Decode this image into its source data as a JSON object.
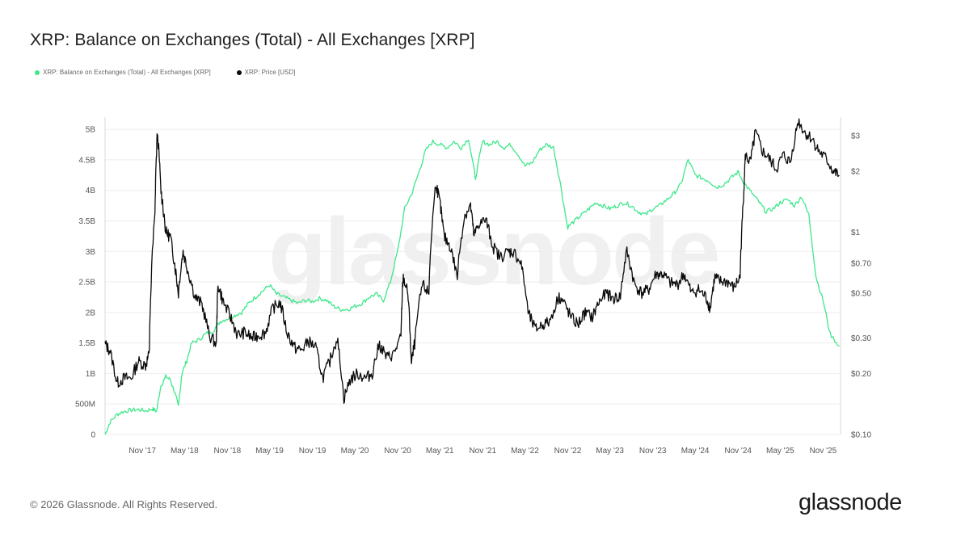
{
  "title": "XRP: Balance on Exchanges (Total) - All Exchanges [XRP]",
  "footer": "© 2026 Glassnode. All Rights Reserved.",
  "brand": "glassnode",
  "watermark": "glassnode",
  "chart_data": {
    "type": "line",
    "title": "XRP: Balance on Exchanges (Total) - All Exchanges [XRP]",
    "legend_position": "top-left",
    "grid": {
      "horizontal": true,
      "vertical": false
    },
    "x_ticks": [
      "Nov '17",
      "May '18",
      "Nov '18",
      "May '19",
      "Nov '19",
      "May '20",
      "Nov '20",
      "May '21",
      "Nov '21",
      "May '22",
      "Nov '22",
      "May '23",
      "Nov '23",
      "May '24",
      "Nov '24",
      "May '25",
      "Nov '25"
    ],
    "x_range": [
      "2017-05-25",
      "2026-01-15"
    ],
    "left_axis": {
      "scale": "linear",
      "range": [
        0,
        5200000000
      ],
      "ticks": [
        0,
        500000000,
        1000000000,
        1500000000,
        2000000000,
        2500000000,
        3000000000,
        3500000000,
        4000000000,
        4500000000,
        5000000000
      ],
      "tick_labels": [
        "0",
        "500M",
        "1B",
        "1.5B",
        "2B",
        "2.5B",
        "3B",
        "3.5B",
        "4B",
        "4.5B",
        "5B"
      ]
    },
    "right_axis": {
      "scale": "log",
      "range": [
        0.1,
        3.7
      ],
      "ticks": [
        0.1,
        0.2,
        0.3,
        0.5,
        0.7,
        1,
        2,
        3
      ],
      "tick_labels": [
        "$0.10",
        "$0.20",
        "$0.30",
        "$0.50",
        "$0.70",
        "$1",
        "$2",
        "$3"
      ]
    },
    "series": [
      {
        "name": "XRP: Balance on Exchanges (Total) - All Exchanges [XRP]",
        "axis": "left",
        "color": "#3ee88a",
        "points": [
          [
            "2017-05-25",
            0
          ],
          [
            "2017-06-15",
            200000000
          ],
          [
            "2017-07-15",
            330000000
          ],
          [
            "2017-08-15",
            380000000
          ],
          [
            "2017-09-15",
            400000000
          ],
          [
            "2017-10-15",
            410000000
          ],
          [
            "2017-11-15",
            390000000
          ],
          [
            "2017-12-15",
            420000000
          ],
          [
            "2018-01-01",
            380000000
          ],
          [
            "2018-01-20",
            800000000
          ],
          [
            "2018-02-10",
            950000000
          ],
          [
            "2018-03-01",
            900000000
          ],
          [
            "2018-03-20",
            700000000
          ],
          [
            "2018-04-05",
            460000000
          ],
          [
            "2018-04-20",
            1000000000
          ],
          [
            "2018-05-10",
            1200000000
          ],
          [
            "2018-06-01",
            1500000000
          ],
          [
            "2018-07-01",
            1550000000
          ],
          [
            "2018-08-01",
            1650000000
          ],
          [
            "2018-09-01",
            1700000000
          ],
          [
            "2018-10-01",
            1850000000
          ],
          [
            "2018-11-01",
            1900000000
          ],
          [
            "2018-12-01",
            1950000000
          ],
          [
            "2019-01-01",
            2000000000
          ],
          [
            "2019-02-01",
            2150000000
          ],
          [
            "2019-03-01",
            2250000000
          ],
          [
            "2019-04-01",
            2350000000
          ],
          [
            "2019-05-01",
            2450000000
          ],
          [
            "2019-06-01",
            2300000000
          ],
          [
            "2019-07-01",
            2250000000
          ],
          [
            "2019-08-01",
            2200000000
          ],
          [
            "2019-09-01",
            2150000000
          ],
          [
            "2019-10-01",
            2200000000
          ],
          [
            "2019-11-01",
            2180000000
          ],
          [
            "2019-12-01",
            2230000000
          ],
          [
            "2020-01-01",
            2200000000
          ],
          [
            "2020-02-01",
            2100000000
          ],
          [
            "2020-03-01",
            2050000000
          ],
          [
            "2020-04-01",
            2050000000
          ],
          [
            "2020-05-01",
            2100000000
          ],
          [
            "2020-06-01",
            2150000000
          ],
          [
            "2020-07-01",
            2250000000
          ],
          [
            "2020-08-01",
            2300000000
          ],
          [
            "2020-09-01",
            2200000000
          ],
          [
            "2020-10-01",
            2500000000
          ],
          [
            "2020-11-01",
            3000000000
          ],
          [
            "2020-12-01",
            3700000000
          ],
          [
            "2021-01-01",
            3950000000
          ],
          [
            "2021-02-01",
            4300000000
          ],
          [
            "2021-03-01",
            4650000000
          ],
          [
            "2021-04-01",
            4800000000
          ],
          [
            "2021-05-01",
            4750000000
          ],
          [
            "2021-06-01",
            4700000000
          ],
          [
            "2021-07-01",
            4800000000
          ],
          [
            "2021-08-01",
            4700000000
          ],
          [
            "2021-09-01",
            4850000000
          ],
          [
            "2021-10-01",
            4200000000
          ],
          [
            "2021-11-01",
            4800000000
          ],
          [
            "2021-12-01",
            4750000000
          ],
          [
            "2022-01-01",
            4800000000
          ],
          [
            "2022-02-01",
            4700000000
          ],
          [
            "2022-03-01",
            4750000000
          ],
          [
            "2022-04-01",
            4600000000
          ],
          [
            "2022-05-01",
            4400000000
          ],
          [
            "2022-06-01",
            4450000000
          ],
          [
            "2022-07-01",
            4650000000
          ],
          [
            "2022-08-01",
            4750000000
          ],
          [
            "2022-09-01",
            4700000000
          ],
          [
            "2022-10-01",
            4100000000
          ],
          [
            "2022-11-01",
            3400000000
          ],
          [
            "2022-12-01",
            3500000000
          ],
          [
            "2023-01-01",
            3600000000
          ],
          [
            "2023-02-01",
            3700000000
          ],
          [
            "2023-03-01",
            3800000000
          ],
          [
            "2023-04-01",
            3750000000
          ],
          [
            "2023-05-01",
            3700000000
          ],
          [
            "2023-06-01",
            3750000000
          ],
          [
            "2023-07-01",
            3800000000
          ],
          [
            "2023-08-01",
            3750000000
          ],
          [
            "2023-09-01",
            3650000000
          ],
          [
            "2023-10-01",
            3600000000
          ],
          [
            "2023-11-01",
            3700000000
          ],
          [
            "2023-12-01",
            3750000000
          ],
          [
            "2024-01-01",
            3850000000
          ],
          [
            "2024-02-01",
            3950000000
          ],
          [
            "2024-03-01",
            4100000000
          ],
          [
            "2024-04-01",
            4500000000
          ],
          [
            "2024-05-01",
            4250000000
          ],
          [
            "2024-06-01",
            4200000000
          ],
          [
            "2024-07-01",
            4150000000
          ],
          [
            "2024-08-01",
            4050000000
          ],
          [
            "2024-09-01",
            4100000000
          ],
          [
            "2024-10-01",
            4200000000
          ],
          [
            "2024-11-01",
            4300000000
          ],
          [
            "2024-12-01",
            4100000000
          ],
          [
            "2025-01-01",
            3950000000
          ],
          [
            "2025-02-01",
            3800000000
          ],
          [
            "2025-03-01",
            3650000000
          ],
          [
            "2025-04-01",
            3700000000
          ],
          [
            "2025-05-01",
            3800000000
          ],
          [
            "2025-06-01",
            3850000000
          ],
          [
            "2025-07-01",
            3750000000
          ],
          [
            "2025-08-01",
            3900000000
          ],
          [
            "2025-09-01",
            3600000000
          ],
          [
            "2025-10-01",
            2600000000
          ],
          [
            "2025-11-01",
            2200000000
          ],
          [
            "2025-12-01",
            1650000000
          ],
          [
            "2026-01-10",
            1450000000
          ]
        ]
      },
      {
        "name": "XRP: Price [USD]",
        "axis": "right",
        "color": "#0a0a0a",
        "points": [
          [
            "2017-05-25",
            0.28
          ],
          [
            "2017-06-15",
            0.26
          ],
          [
            "2017-07-15",
            0.18
          ],
          [
            "2017-08-15",
            0.19
          ],
          [
            "2017-09-15",
            0.19
          ],
          [
            "2017-10-15",
            0.23
          ],
          [
            "2017-11-15",
            0.22
          ],
          [
            "2017-12-01",
            0.25
          ],
          [
            "2017-12-25",
            1.2
          ],
          [
            "2018-01-05",
            3.1
          ],
          [
            "2018-01-20",
            1.6
          ],
          [
            "2018-02-10",
            1.0
          ],
          [
            "2018-03-01",
            0.95
          ],
          [
            "2018-03-20",
            0.7
          ],
          [
            "2018-04-05",
            0.5
          ],
          [
            "2018-04-25",
            0.8
          ],
          [
            "2018-05-15",
            0.65
          ],
          [
            "2018-06-15",
            0.48
          ],
          [
            "2018-07-15",
            0.44
          ],
          [
            "2018-08-15",
            0.31
          ],
          [
            "2018-09-15",
            0.28
          ],
          [
            "2018-09-22",
            0.55
          ],
          [
            "2018-10-15",
            0.45
          ],
          [
            "2018-11-15",
            0.38
          ],
          [
            "2018-12-15",
            0.31
          ],
          [
            "2019-01-15",
            0.32
          ],
          [
            "2019-02-15",
            0.3
          ],
          [
            "2019-03-15",
            0.31
          ],
          [
            "2019-04-15",
            0.32
          ],
          [
            "2019-05-15",
            0.42
          ],
          [
            "2019-06-15",
            0.45
          ],
          [
            "2019-07-15",
            0.32
          ],
          [
            "2019-08-15",
            0.27
          ],
          [
            "2019-09-15",
            0.26
          ],
          [
            "2019-10-15",
            0.29
          ],
          [
            "2019-11-15",
            0.27
          ],
          [
            "2019-12-15",
            0.19
          ],
          [
            "2020-01-15",
            0.23
          ],
          [
            "2020-02-15",
            0.3
          ],
          [
            "2020-03-15",
            0.15
          ],
          [
            "2020-04-15",
            0.19
          ],
          [
            "2020-05-15",
            0.2
          ],
          [
            "2020-06-15",
            0.19
          ],
          [
            "2020-07-15",
            0.2
          ],
          [
            "2020-08-15",
            0.28
          ],
          [
            "2020-09-15",
            0.24
          ],
          [
            "2020-10-15",
            0.25
          ],
          [
            "2020-11-15",
            0.3
          ],
          [
            "2020-11-25",
            0.6
          ],
          [
            "2020-12-15",
            0.5
          ],
          [
            "2020-12-30",
            0.22
          ],
          [
            "2021-01-15",
            0.29
          ],
          [
            "2021-02-15",
            0.55
          ],
          [
            "2021-03-15",
            0.5
          ],
          [
            "2021-04-15",
            1.75
          ],
          [
            "2021-05-01",
            1.4
          ],
          [
            "2021-05-20",
            0.95
          ],
          [
            "2021-06-15",
            0.85
          ],
          [
            "2021-07-15",
            0.6
          ],
          [
            "2021-08-15",
            1.2
          ],
          [
            "2021-09-10",
            1.35
          ],
          [
            "2021-09-25",
            0.95
          ],
          [
            "2021-10-15",
            1.1
          ],
          [
            "2021-11-15",
            1.15
          ],
          [
            "2021-12-15",
            0.85
          ],
          [
            "2022-01-15",
            0.75
          ],
          [
            "2022-02-15",
            0.8
          ],
          [
            "2022-03-15",
            0.8
          ],
          [
            "2022-04-15",
            0.7
          ],
          [
            "2022-05-15",
            0.4
          ],
          [
            "2022-06-15",
            0.33
          ],
          [
            "2022-07-15",
            0.35
          ],
          [
            "2022-08-15",
            0.36
          ],
          [
            "2022-09-25",
            0.48
          ],
          [
            "2022-10-15",
            0.45
          ],
          [
            "2022-11-15",
            0.38
          ],
          [
            "2022-12-15",
            0.35
          ],
          [
            "2023-01-15",
            0.4
          ],
          [
            "2023-02-15",
            0.38
          ],
          [
            "2023-03-15",
            0.45
          ],
          [
            "2023-04-15",
            0.5
          ],
          [
            "2023-05-15",
            0.47
          ],
          [
            "2023-06-15",
            0.48
          ],
          [
            "2023-07-13",
            0.8
          ],
          [
            "2023-08-15",
            0.55
          ],
          [
            "2023-09-15",
            0.5
          ],
          [
            "2023-10-15",
            0.52
          ],
          [
            "2023-11-15",
            0.62
          ],
          [
            "2023-12-15",
            0.62
          ],
          [
            "2024-01-15",
            0.56
          ],
          [
            "2024-02-15",
            0.55
          ],
          [
            "2024-03-15",
            0.62
          ],
          [
            "2024-04-15",
            0.5
          ],
          [
            "2024-05-15",
            0.52
          ],
          [
            "2024-06-15",
            0.48
          ],
          [
            "2024-07-05",
            0.42
          ],
          [
            "2024-07-25",
            0.6
          ],
          [
            "2024-08-15",
            0.57
          ],
          [
            "2024-09-15",
            0.57
          ],
          [
            "2024-10-15",
            0.53
          ],
          [
            "2024-11-10",
            0.6
          ],
          [
            "2024-11-25",
            1.45
          ],
          [
            "2024-12-03",
            2.4
          ],
          [
            "2024-12-25",
            2.2
          ],
          [
            "2025-01-15",
            3.1
          ],
          [
            "2025-02-15",
            2.5
          ],
          [
            "2025-03-15",
            2.3
          ],
          [
            "2025-04-15",
            2.05
          ],
          [
            "2025-05-15",
            2.4
          ],
          [
            "2025-06-15",
            2.2
          ],
          [
            "2025-07-18",
            3.55
          ],
          [
            "2025-08-15",
            3.1
          ],
          [
            "2025-09-15",
            2.9
          ],
          [
            "2025-10-15",
            2.5
          ],
          [
            "2025-11-15",
            2.3
          ],
          [
            "2025-12-15",
            2.0
          ],
          [
            "2026-01-10",
            1.9
          ]
        ]
      }
    ]
  }
}
